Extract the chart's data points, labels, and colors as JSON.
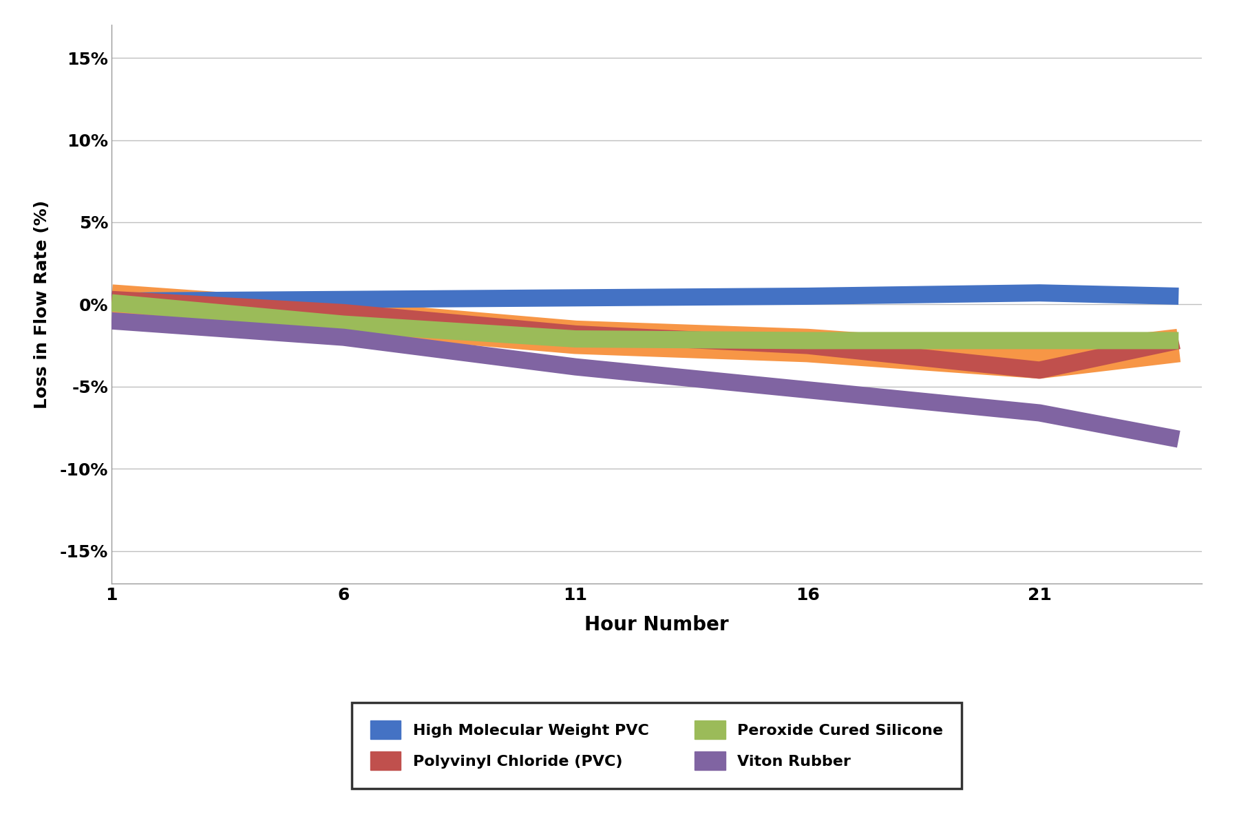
{
  "series": [
    {
      "label": "High Molecular Weight PVC",
      "color": "#4472c4",
      "linewidth": 18,
      "x": [
        1,
        6,
        11,
        16,
        21,
        24
      ],
      "y": [
        0.002,
        0.003,
        0.004,
        0.005,
        0.007,
        0.005
      ]
    },
    {
      "label": "Polyvinyl Chloride (PVC)",
      "color": "#c0504d",
      "linewidth": 18,
      "x": [
        1,
        6,
        11,
        16,
        21,
        24
      ],
      "y": [
        0.003,
        -0.005,
        -0.018,
        -0.025,
        -0.04,
        -0.022
      ]
    },
    {
      "label": "Peroxide Cured Silicone",
      "color": "#9bbb59",
      "linewidth": 18,
      "x": [
        1,
        6,
        11,
        16,
        21,
        24
      ],
      "y": [
        0.001,
        -0.012,
        -0.021,
        -0.022,
        -0.022,
        -0.022
      ]
    },
    {
      "label": "Viton Rubber",
      "color": "#8064a2",
      "linewidth": 18,
      "x": [
        1,
        6,
        11,
        16,
        21,
        24
      ],
      "y": [
        -0.01,
        -0.02,
        -0.038,
        -0.052,
        -0.066,
        -0.082
      ]
    }
  ],
  "orange_band": {
    "color": "#f79646",
    "linewidth": 35,
    "x": [
      1,
      6,
      11,
      16,
      21,
      24
    ],
    "y": [
      0.002,
      -0.008,
      -0.02,
      -0.025,
      -0.035,
      -0.025
    ]
  },
  "xlabel": "Hour Number",
  "ylabel": "Loss in Flow Rate (%)",
  "xlim": [
    1,
    24.5
  ],
  "ylim": [
    -0.17,
    0.17
  ],
  "xticks": [
    1,
    6,
    11,
    16,
    21
  ],
  "yticks": [
    -0.15,
    -0.1,
    -0.05,
    0.0,
    0.05,
    0.1,
    0.15
  ],
  "ytick_labels": [
    "-15%",
    "-10%",
    "-5%",
    "0%",
    "5%",
    "10%",
    "15%"
  ],
  "grid_color": "#bfbfbf",
  "background_color": "#ffffff",
  "xlabel_fontsize": 20,
  "ylabel_fontsize": 18,
  "tick_fontsize": 18,
  "legend_fontsize": 16,
  "legend_colors": [
    "#4472c4",
    "#c0504d",
    "#9bbb59",
    "#8064a2"
  ],
  "legend_labels": [
    "High Molecular Weight PVC",
    "Polyvinyl Chloride (PVC)",
    "Peroxide Cured Silicone",
    "Viton Rubber"
  ]
}
